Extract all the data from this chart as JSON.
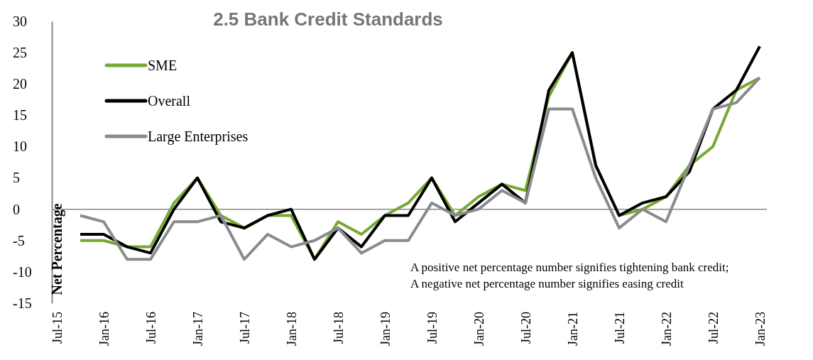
{
  "chart_data": {
    "type": "line",
    "title": "2.5 Bank Credit Standards",
    "ylabel": "Net Percentage",
    "categories": [
      "Jul-15",
      null,
      "Jan-16",
      null,
      "Jul-16",
      null,
      "Jan-17",
      null,
      "Jul-17",
      null,
      "Jan-18",
      null,
      "Jul-18",
      null,
      "Jan-19",
      null,
      "Jul-19",
      null,
      "Jan-20",
      null,
      "Jul-20",
      null,
      "Jan-21",
      null,
      "Jul-21",
      null,
      "Jan-22",
      null,
      "Jul-22",
      null,
      "Jan-23"
    ],
    "series": [
      {
        "name": "SME",
        "color": "#77a832",
        "values": [
          null,
          -5,
          -5,
          -6,
          -6,
          1,
          5,
          -1,
          -3,
          -1,
          -1,
          -8,
          -2,
          -4,
          -1,
          1,
          5,
          -1,
          2,
          4,
          3,
          18,
          25,
          7,
          -1,
          0,
          2,
          7,
          10,
          19,
          21
        ]
      },
      {
        "name": "Overall",
        "color": "#000000",
        "values": [
          null,
          -4,
          -4,
          -6,
          -7,
          0,
          5,
          -2,
          -3,
          -1,
          0,
          -8,
          -3,
          -6,
          -1,
          -1,
          5,
          -2,
          1,
          4,
          1,
          19,
          25,
          7,
          -1,
          1,
          2,
          6,
          16,
          19,
          26
        ]
      },
      {
        "name": "Large Enterprises",
        "color": "#8a8b8e",
        "values": [
          null,
          -1,
          -2,
          -8,
          -8,
          -2,
          -2,
          -1,
          -8,
          -4,
          -6,
          -5,
          -3,
          -7,
          -5,
          -5,
          1,
          -1,
          0,
          3,
          1,
          16,
          16,
          5,
          -3,
          0,
          -2,
          7,
          16,
          17,
          21
        ]
      }
    ],
    "ylim": [
      -15,
      30
    ],
    "yticks": [
      -15,
      -10,
      -5,
      0,
      5,
      10,
      15,
      20,
      25,
      30
    ],
    "grid": false,
    "ref_lines": [
      {
        "axis": "y",
        "value": 0,
        "color": "#8a8a8a"
      }
    ],
    "legend": "top left",
    "marker": "none",
    "line_style": "solid",
    "annotations": [
      "A positive net percentage number signifies tightening bank credit;",
      "A negative net percentage number signifies easing credit"
    ]
  }
}
